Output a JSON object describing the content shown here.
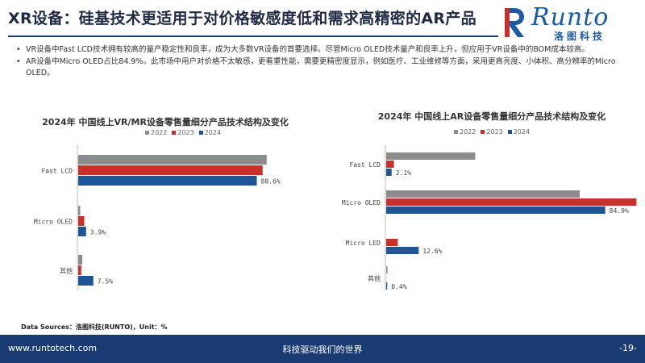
{
  "header": {
    "title": "XR设备：硅基技术更适用于对价格敏感度低和需求高精密的AR产品",
    "logo_text": "Runto",
    "logo_subtitle": "洛图科技"
  },
  "bullets": [
    "VR设备中Fast LCD技术拥有较高的量产稳定性和良率，成为大多数VR设备的首要选择。尽管Micro OLED技术量产和良率上升，但应用于VR设备中的BOM成本较高。",
    "AR设备中Micro OLED占比84.9%。此市场中用户对价格不太敏感，更看重性能，需要更精密度显示，例如医疗、工业维修等方面，采用更高亮度、小体积、高分辨率的Micro OLED。"
  ],
  "colors": {
    "2022": "#8c8c8c",
    "2023": "#c8312b",
    "2024": "#1f5592"
  },
  "chart_data": [
    {
      "type": "bar",
      "orientation": "horizontal",
      "title": "2024年 中国线上VR/MR设备零售量细分产品技术结构及变化",
      "categories": [
        "Fast LCD",
        "Micro OLED",
        "其他"
      ],
      "series": [
        {
          "name": "2022",
          "values": [
            93.5,
            1.0,
            2.0
          ]
        },
        {
          "name": "2023",
          "values": [
            91.5,
            3.0,
            1.5
          ]
        },
        {
          "name": "2024",
          "values": [
            88.6,
            3.9,
            7.5
          ]
        }
      ],
      "data_labels": [
        "88.6%",
        "3.9%",
        "7.5%"
      ],
      "xlim": [
        0,
        100
      ]
    },
    {
      "type": "bar",
      "orientation": "horizontal",
      "title": "2024年 中国线上AR设备零售量细分产品技术结构及变化",
      "categories": [
        "Fast LCD",
        "Micro OLED",
        "Micro LED",
        "其他"
      ],
      "series": [
        {
          "name": "2022",
          "values": [
            34.5,
            75.0,
            0.0,
            0.5
          ]
        },
        {
          "name": "2023",
          "values": [
            3.0,
            97.0,
            4.5,
            0.0
          ]
        },
        {
          "name": "2024",
          "values": [
            2.1,
            84.9,
            12.6,
            0.4
          ]
        }
      ],
      "data_labels": [
        "2.1%",
        "84.9%",
        "12.6%",
        "0.4%"
      ],
      "xlim": [
        0,
        100
      ]
    }
  ],
  "source": "Data Sources：洛图科技(RUNTO)，Unit：%",
  "footer": {
    "url": "www.runtotech.com",
    "slogan": "科技驱动我们的世界",
    "page": "-19-"
  }
}
